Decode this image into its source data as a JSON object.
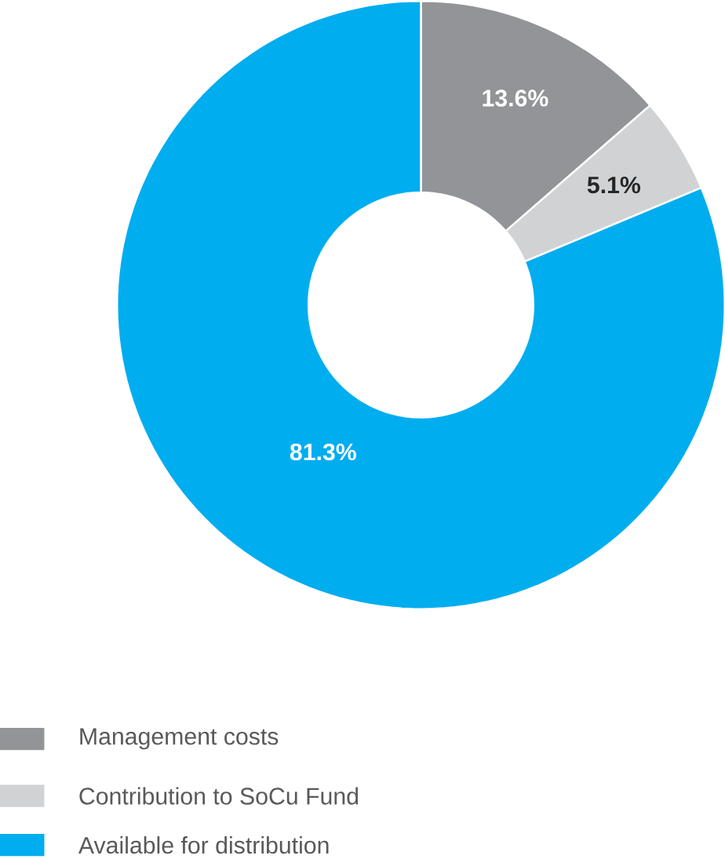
{
  "chart_data": {
    "type": "donut",
    "categories": [
      "Management costs",
      "Contribution to SoCu Fund",
      "Available for distribution"
    ],
    "values": [
      13.6,
      5.1,
      81.3
    ],
    "colors": [
      "#929497",
      "#d1d2d4",
      "#00adef"
    ],
    "value_labels": [
      "13.6%",
      "5.1%",
      "81.3%"
    ],
    "legend": "bottom"
  }
}
